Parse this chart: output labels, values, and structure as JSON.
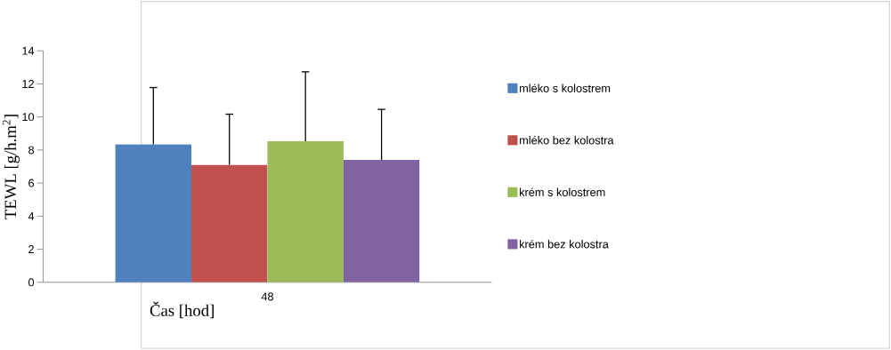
{
  "chart_data": {
    "type": "bar",
    "xlabel": "Čas [hod]",
    "ylabel": "TEWL [g/h.m$^{2}$]",
    "categories": [
      "48"
    ],
    "series": [
      {
        "name": "mléko s kolostrem",
        "color": "#4f81bd",
        "values": [
          8.34
        ],
        "errors": [
          [
            8.34,
            11.78
          ]
        ]
      },
      {
        "name": "mléko bez kolostra",
        "color": "#c0504d",
        "values": [
          7.11
        ],
        "errors": [
          [
            7.11,
            10.17
          ]
        ]
      },
      {
        "name": "krém s kolostrem",
        "color": "#9bbb59",
        "values": [
          8.53
        ],
        "errors": [
          [
            8.53,
            12.73
          ]
        ]
      },
      {
        "name": "krém bez kolostra",
        "color": "#8064a2",
        "values": [
          7.4
        ],
        "errors": [
          [
            7.4,
            10.46
          ]
        ]
      }
    ],
    "ylim": [
      0,
      14
    ],
    "yticks": [
      0,
      2,
      4,
      6,
      8,
      10,
      12,
      14
    ],
    "legend": "right",
    "grid": false
  }
}
